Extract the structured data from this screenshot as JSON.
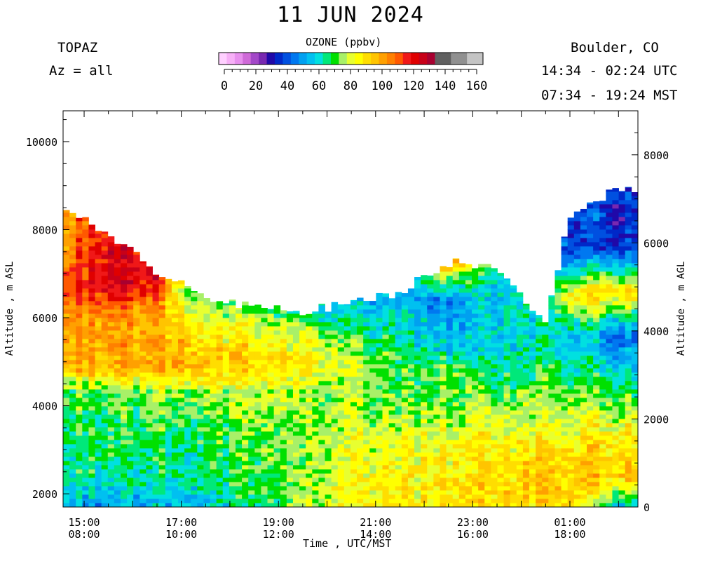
{
  "chart_data": {
    "type": "heatmap",
    "title": "11 JUN 2024",
    "instrument": "TOPAZ",
    "azimuth": "Az = all",
    "location": "Boulder, CO",
    "utc_range": "14:34 - 02:24 UTC",
    "mst_range": "07:34 - 19:24 MST",
    "colorbar": {
      "label": "OZONE (ppbv)",
      "ticks": [
        "0",
        "20",
        "40",
        "60",
        "80",
        "100",
        "120",
        "140",
        "160"
      ],
      "colors": [
        "#ffd0ff",
        "#f7b0f7",
        "#e890ee",
        "#cf6ad8",
        "#a348c8",
        "#7828b0",
        "#2008a8",
        "#0028c8",
        "#0050e0",
        "#0078f0",
        "#00a0f0",
        "#00c0f0",
        "#00e0e0",
        "#00e87a",
        "#00e000",
        "#a8f068",
        "#e8ff30",
        "#ffff00",
        "#ffdd00",
        "#ffc400",
        "#ffa000",
        "#ff8000",
        "#ff5800",
        "#f01818",
        "#e00000",
        "#c80018",
        "#a80030",
        "#606060",
        "#606060",
        "#909090",
        "#909090",
        "#c4c4c4",
        "#c4c4c4"
      ]
    },
    "xlabel": "Time , UTC/MST",
    "ylabel": "Altitude , m ASL",
    "ylabel_right": "Altitude , m AGL",
    "x_ticks": [
      {
        "utc": "15:00",
        "mst": "08:00"
      },
      {
        "utc": "17:00",
        "mst": "10:00"
      },
      {
        "utc": "19:00",
        "mst": "12:00"
      },
      {
        "utc": "21:00",
        "mst": "14:00"
      },
      {
        "utc": "23:00",
        "mst": "16:00"
      },
      {
        "utc": "01:00",
        "mst": "18:00"
      }
    ],
    "y_ticks_asl": [
      "2000",
      "4000",
      "6000",
      "8000",
      "10000"
    ],
    "y_ticks_agl": [
      "0",
      "2000",
      "4000",
      "6000",
      "8000"
    ],
    "xlim": [
      "14:34",
      "02:24"
    ],
    "ylim_asl": [
      1700,
      10700
    ],
    "series": [
      {
        "time": "14:34",
        "top": 8450,
        "profile": [
          [
            1700,
            55
          ],
          [
            2400,
            64
          ],
          [
            3300,
            68
          ],
          [
            4300,
            70
          ],
          [
            4900,
            96
          ],
          [
            5900,
            100
          ],
          [
            6600,
            112
          ],
          [
            7800,
            100
          ]
        ]
      },
      {
        "time": "15:30",
        "top": 7900,
        "profile": [
          [
            1700,
            50
          ],
          [
            2400,
            65
          ],
          [
            3300,
            68
          ],
          [
            4300,
            72
          ],
          [
            4900,
            96
          ],
          [
            5900,
            100
          ],
          [
            6600,
            118
          ],
          [
            7400,
            120
          ]
        ]
      },
      {
        "time": "16:30",
        "top": 7050,
        "profile": [
          [
            1700,
            54
          ],
          [
            2400,
            65
          ],
          [
            3300,
            68
          ],
          [
            4300,
            74
          ],
          [
            4900,
            98
          ],
          [
            5900,
            96
          ],
          [
            6400,
            104
          ],
          [
            6700,
            118
          ]
        ]
      },
      {
        "time": "17:00",
        "top": 6750,
        "profile": [
          [
            1700,
            56
          ],
          [
            2400,
            64
          ],
          [
            3300,
            67
          ],
          [
            4300,
            74
          ],
          [
            4900,
            98
          ],
          [
            5900,
            92
          ],
          [
            6500,
            80
          ]
        ]
      },
      {
        "time": "17:30",
        "top": 6480,
        "profile": [
          [
            1700,
            58
          ],
          [
            2400,
            66
          ],
          [
            3300,
            68
          ],
          [
            4300,
            76
          ],
          [
            4900,
            96
          ],
          [
            5800,
            84
          ],
          [
            6400,
            72
          ]
        ]
      },
      {
        "time": "18:30",
        "top": 6250,
        "profile": [
          [
            1700,
            64
          ],
          [
            2400,
            70
          ],
          [
            3300,
            72
          ],
          [
            4300,
            78
          ],
          [
            4900,
            92
          ],
          [
            5800,
            82
          ],
          [
            6200,
            70
          ]
        ]
      },
      {
        "time": "19:30",
        "top": 6150,
        "profile": [
          [
            1700,
            76
          ],
          [
            2400,
            76
          ],
          [
            3300,
            74
          ],
          [
            4300,
            78
          ],
          [
            4900,
            88
          ],
          [
            5700,
            80
          ],
          [
            6100,
            66
          ]
        ]
      },
      {
        "time": "20:30",
        "top": 6300,
        "profile": [
          [
            1700,
            84
          ],
          [
            2400,
            82
          ],
          [
            3300,
            78
          ],
          [
            4300,
            74
          ],
          [
            4900,
            78
          ],
          [
            5500,
            68
          ],
          [
            6200,
            56
          ]
        ]
      },
      {
        "time": "21:30",
        "top": 6600,
        "profile": [
          [
            1700,
            86
          ],
          [
            2400,
            86
          ],
          [
            3300,
            80
          ],
          [
            4300,
            70
          ],
          [
            4900,
            70
          ],
          [
            5600,
            64
          ],
          [
            6400,
            54
          ]
        ]
      },
      {
        "time": "22:30",
        "top": 7250,
        "profile": [
          [
            1700,
            86
          ],
          [
            2400,
            88
          ],
          [
            3300,
            82
          ],
          [
            4300,
            72
          ],
          [
            4900,
            70
          ],
          [
            5300,
            56
          ],
          [
            6400,
            48
          ],
          [
            7000,
            80
          ],
          [
            7200,
            100
          ]
        ]
      },
      {
        "time": "23:30",
        "top": 7200,
        "profile": [
          [
            1700,
            88
          ],
          [
            2400,
            90
          ],
          [
            3300,
            84
          ],
          [
            4300,
            72
          ],
          [
            4900,
            64
          ],
          [
            5300,
            60
          ]
        ]
      },
      {
        "time": "00:30",
        "top": 5900,
        "profile": [
          [
            1700,
            90
          ],
          [
            2400,
            94
          ],
          [
            3300,
            84
          ],
          [
            4300,
            72
          ],
          [
            4900,
            66
          ],
          [
            5500,
            60
          ]
        ]
      },
      {
        "time": "01:00",
        "top": 8300,
        "profile": [
          [
            1700,
            92
          ],
          [
            2400,
            96
          ],
          [
            3300,
            86
          ],
          [
            4300,
            74
          ],
          [
            4900,
            66
          ],
          [
            5600,
            60
          ],
          [
            6500,
            90
          ],
          [
            7500,
            40
          ]
        ]
      },
      {
        "time": "02:00",
        "top": 8950,
        "profile": [
          [
            1700,
            60
          ],
          [
            2400,
            94
          ],
          [
            3300,
            88
          ],
          [
            4300,
            70
          ],
          [
            4900,
            58
          ],
          [
            5600,
            46
          ],
          [
            6600,
            92
          ],
          [
            7600,
            38
          ]
        ]
      }
    ]
  }
}
